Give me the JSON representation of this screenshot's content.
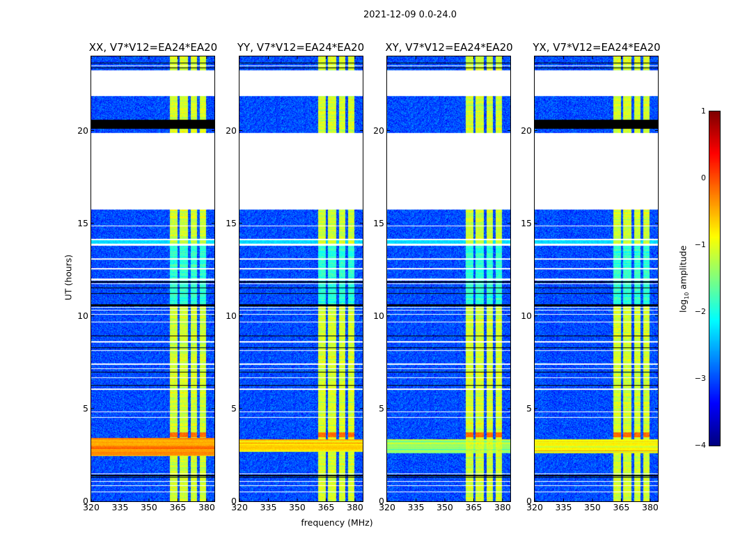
{
  "chart_data": {
    "type": "heatmap",
    "title": "2021-12-09 0.0-24.0",
    "xlabel": "frequency (MHz)",
    "ylabel": "UT (hours)",
    "xlim": [
      320,
      384
    ],
    "ylim": [
      0,
      24
    ],
    "xticks": [
      320,
      335,
      350,
      365,
      380
    ],
    "yticks": [
      0,
      5,
      10,
      15,
      20
    ],
    "colormap": "jet",
    "colorbar": {
      "label_main": "log",
      "label_sub": "10",
      "label_rest": " amplitude",
      "range": [
        -4,
        1
      ],
      "ticks": [
        1,
        0,
        -1,
        -2,
        -3,
        -4
      ],
      "tick_labels": [
        "1",
        "0",
        "−1",
        "−2",
        "−3",
        "−4"
      ]
    },
    "background_level": -3.0,
    "subbands_mhz": [
      [
        360.4,
        365.1
      ],
      [
        365.8,
        370.5
      ],
      [
        371.3,
        375.3
      ],
      [
        376.0,
        380.0
      ]
    ],
    "subband_level": -1.1,
    "subband_dim_hours": [
      10.6,
      13.8
    ],
    "subband_dim_level": -1.9,
    "subband_peak_hours": [
      3.45,
      3.7
    ],
    "subband_peak_level": -0.15,
    "flagged_hours_white": [
      [
        21.85,
        23.25
      ],
      [
        15.72,
        19.85
      ],
      [
        14.83,
        14.88
      ],
      [
        14.1,
        14.15
      ],
      [
        13.8,
        13.9
      ],
      [
        13.05,
        13.09
      ],
      [
        12.52,
        12.58
      ],
      [
        11.92,
        12.0
      ],
      [
        11.7,
        11.74
      ],
      [
        10.44,
        10.48
      ],
      [
        10.28,
        10.31
      ],
      [
        10.08,
        10.11
      ],
      [
        9.64,
        9.68
      ],
      [
        8.56,
        8.64
      ],
      [
        8.1,
        8.14
      ],
      [
        7.38,
        7.42
      ],
      [
        7.15,
        7.19
      ],
      [
        6.65,
        6.69
      ],
      [
        6.02,
        6.1
      ],
      [
        4.82,
        4.86
      ],
      [
        4.52,
        4.56
      ],
      [
        1.48,
        1.52
      ],
      [
        1.04,
        1.09
      ],
      [
        0.84,
        0.88
      ],
      [
        0.5,
        0.54
      ],
      [
        23.48,
        23.52
      ]
    ],
    "zero_hours_black": [
      [
        23.62,
        23.68
      ],
      [
        23.35,
        23.4
      ],
      [
        11.81,
        11.85
      ],
      [
        11.48,
        11.52
      ],
      [
        11.18,
        11.22
      ],
      [
        10.5,
        10.62
      ],
      [
        8.89,
        8.93
      ],
      [
        8.26,
        8.3
      ],
      [
        6.95,
        6.99
      ],
      [
        6.23,
        6.27
      ],
      [
        1.37,
        1.41
      ],
      [
        1.29,
        1.33
      ]
    ],
    "panels": [
      {
        "title": "XX, V7*V12=EA24*EA20",
        "rfi_hours": [
          2.45,
          3.4
        ],
        "rfi_level": -0.35,
        "black_band_hours": [
          20.1,
          20.6
        ]
      },
      {
        "title": "YY, V7*V12=EA24*EA20",
        "rfi_hours": [
          2.65,
          3.35
        ],
        "rfi_level": -0.6,
        "black_band_hours": null
      },
      {
        "title": "XY, V7*V12=EA24*EA20",
        "rfi_hours": [
          2.6,
          3.35
        ],
        "rfi_level": -1.4,
        "black_band_hours": null
      },
      {
        "title": "YX, V7*V12=EA24*EA20",
        "rfi_hours": [
          2.6,
          3.35
        ],
        "rfi_level": -0.9,
        "black_band_hours": [
          20.1,
          20.6
        ]
      }
    ]
  }
}
